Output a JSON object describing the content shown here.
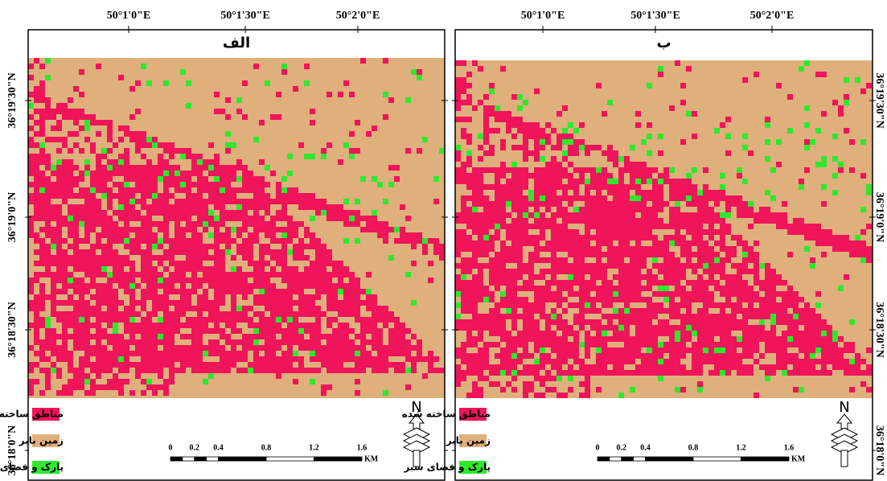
{
  "panels": [
    {
      "title": "الف",
      "lon_labels": [
        "50°1'0\"E",
        "50°1'30\"E",
        "50°2'0\"E"
      ],
      "lat_labels": [
        "36°19'30\"N",
        "36°19'0\"N",
        "36°18'30\"N",
        "36°18'0\"N"
      ]
    },
    {
      "title": "ب",
      "lon_labels": [
        "50°1'0\"E",
        "50°1'30\"E",
        "50°2'0\"E"
      ],
      "lat_labels": [
        "36°19'30\"N",
        "36°19'0\"N",
        "36°18'30\"N",
        "36°18'0\"N"
      ]
    }
  ],
  "legend": [
    {
      "label": "مناطق ساخته شده",
      "color": "#f0145a"
    },
    {
      "label": "زمین بایر",
      "color": "#dfb07c"
    },
    {
      "label": "پارک و فضای سبز",
      "color": "#2ee82e"
    }
  ],
  "scale_bar": {
    "ticks": [
      0,
      0.2,
      0.4,
      0.8,
      1.2,
      1.6
    ],
    "unit": "KM"
  },
  "north": "N"
}
